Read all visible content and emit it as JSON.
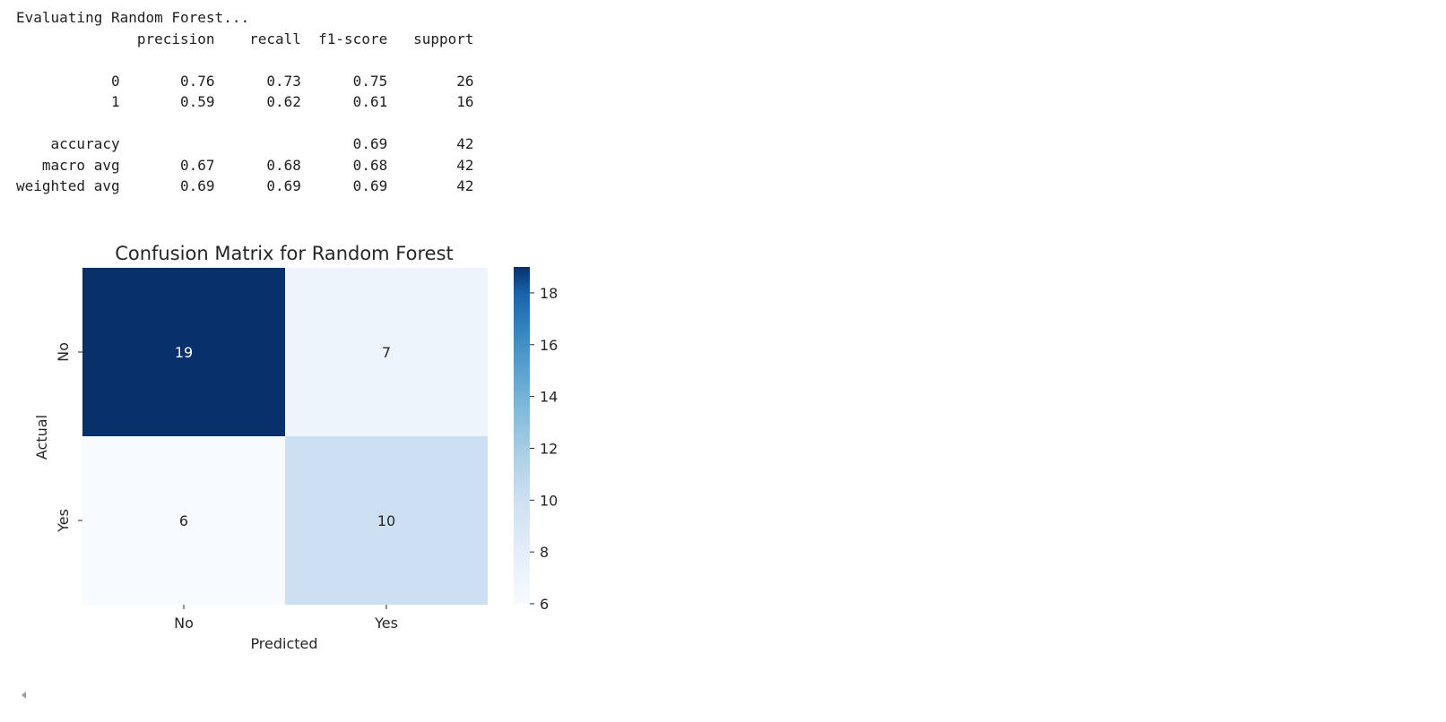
{
  "report": {
    "header_line": "Evaluating Random Forest...",
    "columns_line": "              precision    recall  f1-score   support",
    "lines": [
      "",
      "           0       0.76      0.73      0.75        26",
      "           1       0.59      0.62      0.61        16",
      "",
      "    accuracy                           0.69        42",
      "   macro avg       0.67      0.68      0.68        42",
      "weighted avg       0.69      0.69      0.69        42"
    ]
  },
  "chart_data": {
    "type": "heatmap",
    "title": "Confusion Matrix for Random Forest",
    "xlabel": "Predicted",
    "ylabel": "Actual",
    "x_categories": [
      "No",
      "Yes"
    ],
    "y_categories": [
      "No",
      "Yes"
    ],
    "values": [
      [
        19,
        7
      ],
      [
        6,
        10
      ]
    ],
    "colormap": "Blues",
    "value_range": [
      6,
      19
    ],
    "colorbar_ticks": [
      6,
      8,
      10,
      12,
      14,
      16,
      18
    ]
  },
  "colors": {
    "cell_max": "#08306b",
    "cell_min": "#f7fbff",
    "text_dark": "#262626",
    "text_light": "#ffffff"
  },
  "icons": {
    "scroll_left": "left-triangle-icon"
  }
}
